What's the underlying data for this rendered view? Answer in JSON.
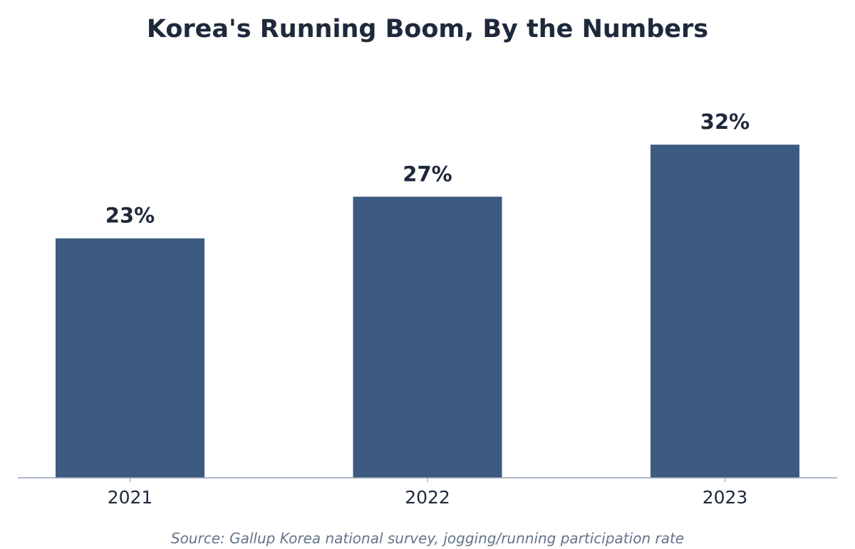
{
  "colors": {
    "bar": "#3d5a80",
    "title": "#1e293b",
    "value_label": "#1e293b",
    "tick_label": "#1e293b",
    "axis_line": "#94a3b8",
    "source": "#64748b"
  },
  "source": "Source: Gallup Korea national survey, jogging/running participation rate",
  "chart_data": {
    "type": "bar",
    "title": "Korea's Running Boom, By the Numbers",
    "categories": [
      "2021",
      "2022",
      "2023"
    ],
    "values": [
      23,
      27,
      32
    ],
    "value_labels": [
      "23%",
      "27%",
      "32%"
    ],
    "xlabel": "",
    "ylabel": "",
    "ylim": [
      0,
      35
    ],
    "grid": false,
    "legend": "none"
  }
}
